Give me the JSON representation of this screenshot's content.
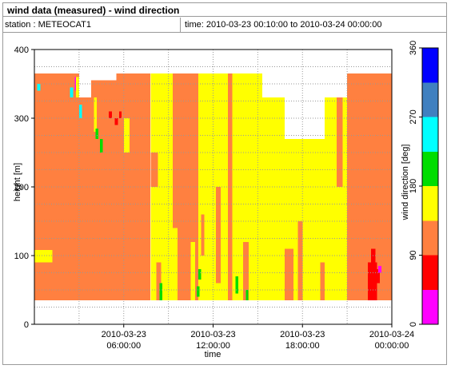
{
  "header": {
    "title": "wind data (measured) - wind direction",
    "station_label": "station : METEOCAT1",
    "time_label": "time: 2010-03-23 00:10:00 to 2010-03-24 00:00:00"
  },
  "chart_data": {
    "type": "heatmap",
    "xlabel": "time",
    "ylabel": "height [m]",
    "x_ticks": [
      {
        "value": 6,
        "date": "2010-03-23",
        "time": "06:00:00"
      },
      {
        "value": 12,
        "date": "2010-03-23",
        "time": "12:00:00"
      },
      {
        "value": 18,
        "date": "2010-03-23",
        "time": "18:00:00"
      },
      {
        "value": 24,
        "date": "2010-03-24",
        "time": "00:00:00"
      }
    ],
    "xlim": [
      0,
      24
    ],
    "y_ticks": [
      0,
      100,
      200,
      300,
      400
    ],
    "ylim": [
      0,
      400
    ],
    "grid": true,
    "colorbar": {
      "label": "wind direction [deg]",
      "range": [
        0,
        360
      ],
      "ticks": [
        0,
        90,
        180,
        270,
        360
      ],
      "bins": [
        {
          "from": 0,
          "to": 45,
          "color": "#ff00ff"
        },
        {
          "from": 45,
          "to": 90,
          "color": "#ff0000"
        },
        {
          "from": 90,
          "to": 135,
          "color": "#ff8040"
        },
        {
          "from": 135,
          "to": 180,
          "color": "#ffff00"
        },
        {
          "from": 180,
          "to": 225,
          "color": "#00dd00"
        },
        {
          "from": 225,
          "to": 270,
          "color": "#00ffff"
        },
        {
          "from": 270,
          "to": 315,
          "color": "#4080c0"
        },
        {
          "from": 315,
          "to": 360,
          "color": "#0000ff"
        }
      ]
    },
    "data_height_range": [
      35,
      365
    ],
    "regions": [
      {
        "t0": 0.0,
        "t1": 3.0,
        "h0": 35,
        "h1": 365,
        "direction": 112
      },
      {
        "t0": 3.0,
        "t1": 3.8,
        "h0": 35,
        "h1": 330,
        "direction": 112
      },
      {
        "t0": 3.8,
        "t1": 5.5,
        "h0": 35,
        "h1": 355,
        "direction": 112
      },
      {
        "t0": 5.5,
        "t1": 7.8,
        "h0": 35,
        "h1": 365,
        "direction": 112
      },
      {
        "t0": 7.8,
        "t1": 9.3,
        "h0": 35,
        "h1": 365,
        "direction": 157
      },
      {
        "t0": 9.3,
        "t1": 11.0,
        "h0": 35,
        "h1": 365,
        "direction": 112
      },
      {
        "t0": 11.0,
        "t1": 15.3,
        "h0": 35,
        "h1": 365,
        "direction": 157
      },
      {
        "t0": 15.3,
        "t1": 16.8,
        "h0": 35,
        "h1": 330,
        "direction": 157
      },
      {
        "t0": 16.8,
        "t1": 19.5,
        "h0": 35,
        "h1": 270,
        "direction": 157
      },
      {
        "t0": 19.5,
        "t1": 21.0,
        "h0": 35,
        "h1": 330,
        "direction": 157
      },
      {
        "t0": 21.0,
        "t1": 24.0,
        "h0": 35,
        "h1": 365,
        "direction": 112
      },
      {
        "t0": 0.0,
        "t1": 1.2,
        "h0": 90,
        "h1": 108,
        "direction": 157
      },
      {
        "t0": 2.8,
        "t1": 3.0,
        "h0": 330,
        "h1": 360,
        "direction": 157
      },
      {
        "t0": 4.0,
        "t1": 4.2,
        "h0": 280,
        "h1": 330,
        "direction": 157
      },
      {
        "t0": 6.0,
        "t1": 6.4,
        "h0": 250,
        "h1": 300,
        "direction": 157
      },
      {
        "t0": 7.8,
        "t1": 8.3,
        "h0": 200,
        "h1": 250,
        "direction": 112
      },
      {
        "t0": 8.2,
        "t1": 8.5,
        "h0": 35,
        "h1": 90,
        "direction": 112
      },
      {
        "t0": 9.0,
        "t1": 9.3,
        "h0": 35,
        "h1": 110,
        "direction": 157
      },
      {
        "t0": 9.3,
        "t1": 9.6,
        "h0": 35,
        "h1": 140,
        "direction": 157
      },
      {
        "t0": 10.5,
        "t1": 10.8,
        "h0": 35,
        "h1": 120,
        "direction": 157
      },
      {
        "t0": 11.2,
        "t1": 11.4,
        "h0": 100,
        "h1": 160,
        "direction": 112
      },
      {
        "t0": 12.2,
        "t1": 12.5,
        "h0": 60,
        "h1": 200,
        "direction": 112
      },
      {
        "t0": 13.0,
        "t1": 13.3,
        "h0": 35,
        "h1": 365,
        "direction": 112
      },
      {
        "t0": 14.0,
        "t1": 14.4,
        "h0": 35,
        "h1": 120,
        "direction": 112
      },
      {
        "t0": 16.8,
        "t1": 17.4,
        "h0": 35,
        "h1": 110,
        "direction": 112
      },
      {
        "t0": 17.7,
        "t1": 18.0,
        "h0": 35,
        "h1": 150,
        "direction": 112
      },
      {
        "t0": 19.2,
        "t1": 19.5,
        "h0": 35,
        "h1": 90,
        "direction": 112
      },
      {
        "t0": 20.3,
        "t1": 20.7,
        "h0": 200,
        "h1": 330,
        "direction": 112
      },
      {
        "t0": 0.2,
        "t1": 0.4,
        "h0": 340,
        "h1": 350,
        "direction": 250
      },
      {
        "t0": 2.4,
        "t1": 2.6,
        "h0": 330,
        "h1": 345,
        "direction": 250
      },
      {
        "t0": 3.0,
        "t1": 3.2,
        "h0": 300,
        "h1": 320,
        "direction": 250
      },
      {
        "t0": 4.1,
        "t1": 4.3,
        "h0": 270,
        "h1": 285,
        "direction": 200
      },
      {
        "t0": 4.4,
        "t1": 4.6,
        "h0": 250,
        "h1": 270,
        "direction": 200
      },
      {
        "t0": 2.7,
        "t1": 2.8,
        "h0": 340,
        "h1": 360,
        "direction": 30
      },
      {
        "t0": 5.0,
        "t1": 5.2,
        "h0": 300,
        "h1": 310,
        "direction": 60
      },
      {
        "t0": 5.4,
        "t1": 5.6,
        "h0": 290,
        "h1": 300,
        "direction": 60
      },
      {
        "t0": 5.7,
        "t1": 5.85,
        "h0": 300,
        "h1": 310,
        "direction": 60
      },
      {
        "t0": 8.4,
        "t1": 8.6,
        "h0": 35,
        "h1": 60,
        "direction": 200
      },
      {
        "t0": 11.0,
        "t1": 11.2,
        "h0": 65,
        "h1": 80,
        "direction": 200
      },
      {
        "t0": 13.5,
        "t1": 13.7,
        "h0": 45,
        "h1": 70,
        "direction": 200
      },
      {
        "t0": 14.2,
        "t1": 14.35,
        "h0": 35,
        "h1": 50,
        "direction": 200
      },
      {
        "t0": 10.9,
        "t1": 11.1,
        "h0": 40,
        "h1": 55,
        "direction": 200
      },
      {
        "t0": 22.4,
        "t1": 23.0,
        "h0": 35,
        "h1": 90,
        "direction": 67
      },
      {
        "t0": 22.6,
        "t1": 22.9,
        "h0": 90,
        "h1": 110,
        "direction": 67
      },
      {
        "t0": 23.0,
        "t1": 23.2,
        "h0": 60,
        "h1": 80,
        "direction": 67
      },
      {
        "t0": 23.1,
        "t1": 23.3,
        "h0": 75,
        "h1": 85,
        "direction": 0
      }
    ]
  }
}
